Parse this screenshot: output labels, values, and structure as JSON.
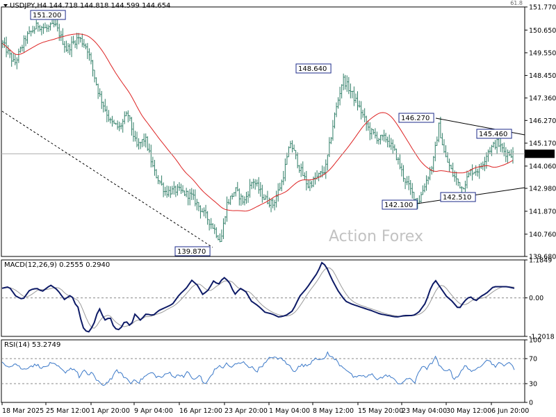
{
  "header": {
    "symbol_line": "USDJPY,H4  144.718 144.818 144.599 144.654",
    "watermark": "Action Forex",
    "corner_fib": "61.8"
  },
  "colors": {
    "price": "#2e7d66",
    "ma": "#dd2222",
    "macd_main": "#0d1a66",
    "macd_signal": "#9a9a9a",
    "rsi": "#3a78c8",
    "levels": "#888888",
    "frame": "#000000"
  },
  "chart_data": [
    {
      "type": "bar",
      "panel": "price",
      "title": "USDJPY,H4  144.718 144.818 144.599 144.654",
      "ylim": [
        139.68,
        151.77
      ],
      "y_ticks": [
        "151.770",
        "150.650",
        "149.550",
        "148.450",
        "147.360",
        "146.270",
        "145.170",
        "144.060",
        "142.980",
        "141.870",
        "140.760",
        "139.680"
      ],
      "last_price_label": "144.654",
      "x_ticks": [
        "18 Mar 2025",
        "25 Mar 12:00",
        "1 Apr 20:00",
        "9 Apr 04:00",
        "16 Apr 12:00",
        "23 Apr 20:00",
        "1 May 04:00",
        "8 May 12:00",
        "15 May 20:00",
        "23 May 04:00",
        "30 May 12:00",
        "6 Jun 20:00"
      ],
      "bar_count": 290,
      "close_anchors": [
        [
          0,
          150.0
        ],
        [
          8,
          149.0
        ],
        [
          16,
          150.3
        ],
        [
          24,
          150.9
        ],
        [
          30,
          150.7
        ],
        [
          36,
          150.9
        ],
        [
          44,
          149.7
        ],
        [
          52,
          150.3
        ],
        [
          58,
          149.8
        ],
        [
          66,
          147.6
        ],
        [
          74,
          146.2
        ],
        [
          80,
          145.9
        ],
        [
          86,
          146.6
        ],
        [
          92,
          145.0
        ],
        [
          98,
          145.4
        ],
        [
          104,
          143.8
        ],
        [
          112,
          142.8
        ],
        [
          120,
          142.9
        ],
        [
          130,
          142.6
        ],
        [
          138,
          141.8
        ],
        [
          144,
          141.2
        ],
        [
          150,
          140.4
        ],
        [
          154,
          142.2
        ],
        [
          160,
          142.9
        ],
        [
          166,
          142.3
        ],
        [
          172,
          143.4
        ],
        [
          180,
          142.5
        ],
        [
          186,
          142.2
        ],
        [
          192,
          143.3
        ],
        [
          198,
          145.2
        ],
        [
          204,
          144.0
        ],
        [
          210,
          143.1
        ],
        [
          216,
          143.5
        ],
        [
          222,
          143.9
        ],
        [
          228,
          146.4
        ],
        [
          234,
          148.3
        ],
        [
          240,
          147.6
        ],
        [
          246,
          146.8
        ],
        [
          252,
          145.8
        ],
        [
          258,
          145.4
        ],
        [
          264,
          145.4
        ],
        [
          270,
          144.7
        ],
        [
          276,
          143.5
        ],
        [
          282,
          142.7
        ],
        [
          286,
          142.3
        ],
        [
          290,
          143.1
        ],
        [
          296,
          144.2
        ],
        [
          300,
          146.0
        ],
        [
          304,
          144.6
        ],
        [
          310,
          143.6
        ],
        [
          316,
          143.0
        ],
        [
          322,
          143.8
        ],
        [
          328,
          143.9
        ],
        [
          334,
          144.8
        ],
        [
          340,
          145.2
        ],
        [
          346,
          144.7
        ],
        [
          351,
          144.654
        ]
      ],
      "lows_marked": [
        139.87,
        142.1,
        142.51
      ],
      "highs_marked": [
        151.2,
        148.64,
        146.27,
        145.46
      ],
      "annotations": [
        "151.200",
        "148.640",
        "146.270",
        "145.460",
        "142.100",
        "142.510",
        "139.870"
      ],
      "moving_average": "red line"
    },
    {
      "type": "line",
      "panel": "macd",
      "title": "MACD(12,26,9) 0.2555 0.2940",
      "series": [
        {
          "name": "MACD",
          "value": 0.2555
        },
        {
          "name": "Signal",
          "value": 0.294
        }
      ],
      "ylim": [
        -1.2018,
        1.1849
      ],
      "y_ticks": [
        "1.1849",
        "0.00",
        "-1.2018"
      ],
      "zero_line": true,
      "macd_anchors": [
        [
          0,
          0.3
        ],
        [
          10,
          0.35
        ],
        [
          20,
          0.05
        ],
        [
          30,
          -0.05
        ],
        [
          40,
          0.25
        ],
        [
          50,
          0.3
        ],
        [
          58,
          0.2
        ],
        [
          70,
          0.4
        ],
        [
          80,
          0.25
        ],
        [
          90,
          -0.05
        ],
        [
          100,
          0.1
        ],
        [
          106,
          -0.2
        ],
        [
          110,
          -0.3
        ],
        [
          116,
          -0.9
        ],
        [
          124,
          -1.1
        ],
        [
          132,
          -0.85
        ],
        [
          140,
          -0.3
        ],
        [
          148,
          -0.7
        ],
        [
          156,
          -0.6
        ],
        [
          162,
          -0.95
        ],
        [
          170,
          -1.0
        ],
        [
          178,
          -0.7
        ],
        [
          186,
          -0.9
        ],
        [
          192,
          -0.5
        ],
        [
          200,
          -0.7
        ],
        [
          208,
          -0.5
        ],
        [
          218,
          -0.55
        ],
        [
          226,
          -0.4
        ],
        [
          236,
          -0.3
        ],
        [
          246,
          -0.2
        ],
        [
          256,
          0.1
        ],
        [
          266,
          0.3
        ],
        [
          274,
          0.55
        ],
        [
          282,
          0.4
        ],
        [
          290,
          0.1
        ],
        [
          298,
          0.25
        ],
        [
          306,
          0.55
        ],
        [
          312,
          0.4
        ],
        [
          320,
          0.65
        ],
        [
          328,
          0.5
        ],
        [
          336,
          0.1
        ],
        [
          344,
          0.3
        ],
        [
          352,
          0.2
        ],
        [
          360,
          -0.1
        ],
        [
          370,
          -0.25
        ],
        [
          380,
          -0.45
        ],
        [
          390,
          -0.5
        ],
        [
          400,
          -0.6
        ],
        [
          410,
          -0.55
        ],
        [
          420,
          -0.4
        ],
        [
          430,
          0.05
        ],
        [
          440,
          0.3
        ],
        [
          448,
          0.55
        ],
        [
          456,
          0.8
        ],
        [
          462,
          1.1
        ],
        [
          468,
          1.0
        ],
        [
          476,
          0.6
        ],
        [
          486,
          0.2
        ],
        [
          496,
          -0.1
        ],
        [
          506,
          -0.2
        ],
        [
          520,
          -0.3
        ],
        [
          534,
          -0.4
        ],
        [
          546,
          -0.5
        ],
        [
          558,
          -0.55
        ],
        [
          570,
          -0.6
        ],
        [
          582,
          -0.55
        ],
        [
          594,
          -0.55
        ],
        [
          602,
          -0.45
        ],
        [
          612,
          -0.15
        ],
        [
          620,
          0.35
        ],
        [
          626,
          0.55
        ],
        [
          634,
          0.3
        ],
        [
          642,
          0.05
        ],
        [
          650,
          -0.1
        ],
        [
          660,
          -0.35
        ],
        [
          668,
          -0.1
        ],
        [
          676,
          0.05
        ],
        [
          684,
          -0.1
        ],
        [
          692,
          0.05
        ],
        [
          700,
          0.15
        ],
        [
          710,
          0.35
        ],
        [
          720,
          0.35
        ],
        [
          730,
          0.35
        ],
        [
          740,
          0.3
        ]
      ]
    },
    {
      "type": "line",
      "panel": "rsi",
      "title": "RSI(14) 53.2749",
      "series": [
        {
          "name": "RSI(14)",
          "value": 53.2749
        }
      ],
      "ylim": [
        0,
        100
      ],
      "y_ticks": [
        "100",
        "70",
        "30",
        "0"
      ],
      "levels": [
        70,
        30
      ],
      "rsi_anchors": [
        [
          0,
          64
        ],
        [
          10,
          58
        ],
        [
          20,
          62
        ],
        [
          30,
          52
        ],
        [
          40,
          58
        ],
        [
          50,
          60
        ],
        [
          60,
          55
        ],
        [
          70,
          62
        ],
        [
          80,
          58
        ],
        [
          90,
          48
        ],
        [
          100,
          55
        ],
        [
          106,
          52
        ],
        [
          112,
          40
        ],
        [
          118,
          52
        ],
        [
          124,
          42
        ],
        [
          130,
          50
        ],
        [
          136,
          35
        ],
        [
          142,
          30
        ],
        [
          148,
          28
        ],
        [
          154,
          35
        ],
        [
          160,
          40
        ],
        [
          166,
          52
        ],
        [
          172,
          45
        ],
        [
          180,
          38
        ],
        [
          186,
          30
        ],
        [
          192,
          38
        ],
        [
          198,
          32
        ],
        [
          204,
          40
        ],
        [
          210,
          44
        ],
        [
          216,
          48
        ],
        [
          222,
          42
        ],
        [
          230,
          40
        ],
        [
          236,
          44
        ],
        [
          242,
          48
        ],
        [
          250,
          40
        ],
        [
          256,
          45
        ],
        [
          262,
          42
        ],
        [
          268,
          48
        ],
        [
          274,
          40
        ],
        [
          280,
          36
        ],
        [
          286,
          45
        ],
        [
          290,
          32
        ],
        [
          294,
          28
        ],
        [
          300,
          40
        ],
        [
          306,
          50
        ],
        [
          312,
          58
        ],
        [
          318,
          55
        ],
        [
          324,
          62
        ],
        [
          330,
          56
        ],
        [
          336,
          60
        ],
        [
          342,
          62
        ],
        [
          350,
          64
        ],
        [
          356,
          58
        ],
        [
          362,
          55
        ],
        [
          368,
          50
        ],
        [
          374,
          58
        ],
        [
          380,
          62
        ],
        [
          386,
          70
        ],
        [
          392,
          74
        ],
        [
          398,
          68
        ],
        [
          404,
          72
        ],
        [
          410,
          62
        ],
        [
          416,
          58
        ],
        [
          422,
          50
        ],
        [
          428,
          56
        ],
        [
          434,
          60
        ],
        [
          440,
          58
        ],
        [
          446,
          64
        ],
        [
          452,
          72
        ],
        [
          458,
          70
        ],
        [
          464,
          66
        ],
        [
          470,
          80
        ],
        [
          476,
          72
        ],
        [
          482,
          68
        ],
        [
          488,
          60
        ],
        [
          494,
          56
        ],
        [
          500,
          50
        ],
        [
          506,
          42
        ],
        [
          512,
          38
        ],
        [
          518,
          44
        ],
        [
          526,
          40
        ],
        [
          534,
          45
        ],
        [
          542,
          38
        ],
        [
          550,
          40
        ],
        [
          558,
          44
        ],
        [
          566,
          36
        ],
        [
          574,
          30
        ],
        [
          582,
          34
        ],
        [
          590,
          40
        ],
        [
          596,
          30
        ],
        [
          602,
          48
        ],
        [
          608,
          60
        ],
        [
          614,
          54
        ],
        [
          620,
          62
        ],
        [
          626,
          72
        ],
        [
          632,
          58
        ],
        [
          638,
          50
        ],
        [
          646,
          54
        ],
        [
          652,
          38
        ],
        [
          658,
          42
        ],
        [
          664,
          50
        ],
        [
          670,
          60
        ],
        [
          676,
          52
        ],
        [
          682,
          48
        ],
        [
          688,
          56
        ],
        [
          694,
          62
        ],
        [
          700,
          70
        ],
        [
          706,
          64
        ],
        [
          712,
          58
        ],
        [
          718,
          62
        ],
        [
          724,
          60
        ],
        [
          730,
          63
        ],
        [
          736,
          60
        ],
        [
          740,
          53
        ]
      ]
    }
  ]
}
